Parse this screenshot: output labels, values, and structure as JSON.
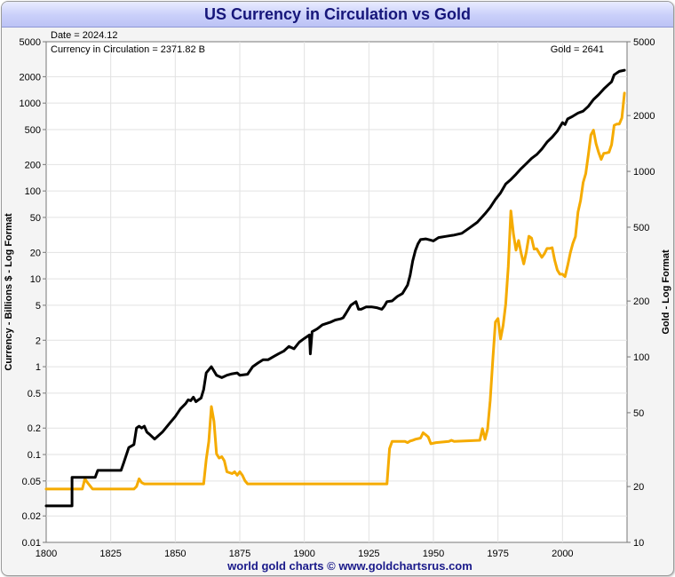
{
  "chart_data": {
    "type": "line",
    "title": "US Currency in Circulation vs Gold",
    "footer": "world gold charts © www.goldchartsrus.com",
    "info": {
      "date": "Date = 2024.12",
      "currency": "Currency in Circulation = 2371.82 B",
      "gold": "Gold = 2641"
    },
    "left_axis": {
      "label": "Currency - Billions $ - Log Format",
      "scale": "log",
      "range": [
        0.01,
        5000
      ],
      "ticks": [
        "0.01",
        "0.02",
        "0.05",
        "0.1",
        "0.2",
        "0.5",
        "1",
        "2",
        "5",
        "10",
        "20",
        "50",
        "100",
        "200",
        "500",
        "1000",
        "2000",
        "5000"
      ]
    },
    "right_axis": {
      "label": "Gold - Log Format",
      "scale": "log",
      "range": [
        10,
        5000
      ],
      "ticks": [
        "10",
        "20",
        "50",
        "100",
        "200",
        "500",
        "1000",
        "2000",
        "5000"
      ]
    },
    "x_axis": {
      "range": [
        1800,
        2025
      ],
      "ticks": [
        "1800",
        "1825",
        "1850",
        "1875",
        "1900",
        "1925",
        "1950",
        "1975",
        "2000"
      ]
    },
    "grid": true,
    "legend": "none",
    "series": [
      {
        "axis": "left",
        "color": "#000000",
        "points": [
          [
            1800,
            0.026
          ],
          [
            1810,
            0.026
          ],
          [
            1810,
            0.055
          ],
          [
            1819,
            0.055
          ],
          [
            1820,
            0.066
          ],
          [
            1829,
            0.066
          ],
          [
            1830,
            0.08
          ],
          [
            1832,
            0.12
          ],
          [
            1834,
            0.13
          ],
          [
            1835,
            0.2
          ],
          [
            1836,
            0.21
          ],
          [
            1837,
            0.2
          ],
          [
            1838,
            0.21
          ],
          [
            1839,
            0.18
          ],
          [
            1840,
            0.17
          ],
          [
            1842,
            0.15
          ],
          [
            1845,
            0.18
          ],
          [
            1848,
            0.23
          ],
          [
            1850,
            0.27
          ],
          [
            1852,
            0.33
          ],
          [
            1854,
            0.38
          ],
          [
            1855,
            0.42
          ],
          [
            1856,
            0.41
          ],
          [
            1857,
            0.45
          ],
          [
            1858,
            0.4
          ],
          [
            1859,
            0.42
          ],
          [
            1860,
            0.44
          ],
          [
            1861,
            0.55
          ],
          [
            1862,
            0.85
          ],
          [
            1864,
            1.0
          ],
          [
            1866,
            0.8
          ],
          [
            1868,
            0.75
          ],
          [
            1870,
            0.8
          ],
          [
            1872,
            0.83
          ],
          [
            1874,
            0.85
          ],
          [
            1875,
            0.8
          ],
          [
            1878,
            0.82
          ],
          [
            1880,
            1.0
          ],
          [
            1882,
            1.1
          ],
          [
            1884,
            1.2
          ],
          [
            1886,
            1.2
          ],
          [
            1888,
            1.3
          ],
          [
            1890,
            1.4
          ],
          [
            1892,
            1.5
          ],
          [
            1894,
            1.7
          ],
          [
            1896,
            1.6
          ],
          [
            1898,
            1.9
          ],
          [
            1900,
            2.1
          ],
          [
            1902,
            2.3
          ],
          [
            1902.3,
            1.4
          ],
          [
            1903,
            2.5
          ],
          [
            1905,
            2.7
          ],
          [
            1907,
            3.0
          ],
          [
            1910,
            3.2
          ],
          [
            1912,
            3.4
          ],
          [
            1914,
            3.5
          ],
          [
            1915,
            3.6
          ],
          [
            1916,
            4.0
          ],
          [
            1918,
            5.0
          ],
          [
            1920,
            5.5
          ],
          [
            1921,
            4.5
          ],
          [
            1922,
            4.5
          ],
          [
            1924,
            4.8
          ],
          [
            1926,
            4.8
          ],
          [
            1928,
            4.7
          ],
          [
            1930,
            4.5
          ],
          [
            1931,
            4.9
          ],
          [
            1932,
            5.5
          ],
          [
            1934,
            5.6
          ],
          [
            1936,
            6.3
          ],
          [
            1938,
            6.8
          ],
          [
            1940,
            8.5
          ],
          [
            1941,
            11
          ],
          [
            1942,
            16
          ],
          [
            1943,
            21
          ],
          [
            1944,
            25
          ],
          [
            1945,
            28
          ],
          [
            1947,
            28.5
          ],
          [
            1949,
            27.5
          ],
          [
            1950,
            27
          ],
          [
            1952,
            29.5
          ],
          [
            1955,
            30.5
          ],
          [
            1958,
            31.5
          ],
          [
            1961,
            33
          ],
          [
            1964,
            38
          ],
          [
            1967,
            44
          ],
          [
            1970,
            55
          ],
          [
            1972,
            65
          ],
          [
            1974,
            80
          ],
          [
            1976,
            95
          ],
          [
            1978,
            120
          ],
          [
            1980,
            135
          ],
          [
            1982,
            155
          ],
          [
            1984,
            180
          ],
          [
            1986,
            205
          ],
          [
            1988,
            235
          ],
          [
            1990,
            260
          ],
          [
            1992,
            300
          ],
          [
            1994,
            360
          ],
          [
            1996,
            410
          ],
          [
            1998,
            480
          ],
          [
            2000,
            600
          ],
          [
            2001,
            570
          ],
          [
            2002,
            660
          ],
          [
            2004,
            710
          ],
          [
            2006,
            770
          ],
          [
            2008,
            810
          ],
          [
            2010,
            920
          ],
          [
            2012,
            1100
          ],
          [
            2014,
            1250
          ],
          [
            2016,
            1450
          ],
          [
            2018,
            1650
          ],
          [
            2019,
            1750
          ],
          [
            2020,
            2100
          ],
          [
            2021,
            2200
          ],
          [
            2022,
            2300
          ],
          [
            2024,
            2371.82
          ]
        ]
      },
      {
        "axis": "right",
        "color": "#f5ab00",
        "points": [
          [
            1800,
            19.39
          ],
          [
            1814,
            19.39
          ],
          [
            1815,
            22
          ],
          [
            1816,
            21
          ],
          [
            1818,
            19.39
          ],
          [
            1834,
            19.39
          ],
          [
            1835,
            20
          ],
          [
            1836,
            22
          ],
          [
            1837,
            21
          ],
          [
            1838,
            20.67
          ],
          [
            1861,
            20.67
          ],
          [
            1862,
            28
          ],
          [
            1863,
            35
          ],
          [
            1864,
            54
          ],
          [
            1865,
            45
          ],
          [
            1866,
            30
          ],
          [
            1867,
            28.5
          ],
          [
            1868,
            29
          ],
          [
            1869,
            27.5
          ],
          [
            1870,
            24
          ],
          [
            1872,
            23.5
          ],
          [
            1873,
            24
          ],
          [
            1874,
            23
          ],
          [
            1875,
            24
          ],
          [
            1876,
            23
          ],
          [
            1877,
            21.5
          ],
          [
            1878,
            20.67
          ],
          [
            1932,
            20.67
          ],
          [
            1933,
            32
          ],
          [
            1934,
            35
          ],
          [
            1939,
            35
          ],
          [
            1940,
            34.5
          ],
          [
            1941,
            35.2
          ],
          [
            1942,
            35.5
          ],
          [
            1943,
            36
          ],
          [
            1945,
            36.5
          ],
          [
            1946,
            39
          ],
          [
            1947,
            38
          ],
          [
            1948,
            37
          ],
          [
            1949,
            34
          ],
          [
            1951,
            34.5
          ],
          [
            1956,
            35
          ],
          [
            1957,
            35.5
          ],
          [
            1958,
            35
          ],
          [
            1968,
            35.5
          ],
          [
            1969,
            41
          ],
          [
            1970,
            36
          ],
          [
            1971,
            40.8
          ],
          [
            1972,
            58
          ],
          [
            1973,
            97
          ],
          [
            1974,
            154
          ],
          [
            1975,
            161
          ],
          [
            1976,
            125
          ],
          [
            1977,
            148
          ],
          [
            1978,
            193
          ],
          [
            1979,
            307
          ],
          [
            1980,
            612
          ],
          [
            1981,
            460
          ],
          [
            1982,
            376
          ],
          [
            1983,
            424
          ],
          [
            1984,
            361
          ],
          [
            1985,
            317
          ],
          [
            1986,
            368
          ],
          [
            1987,
            447
          ],
          [
            1988,
            437
          ],
          [
            1989,
            381
          ],
          [
            1990,
            383
          ],
          [
            1991,
            362
          ],
          [
            1992,
            344
          ],
          [
            1993,
            360
          ],
          [
            1994,
            384
          ],
          [
            1995,
            384
          ],
          [
            1996,
            388
          ],
          [
            1997,
            331
          ],
          [
            1998,
            294
          ],
          [
            1999,
            279
          ],
          [
            2000,
            279
          ],
          [
            2001,
            271
          ],
          [
            2002,
            310
          ],
          [
            2003,
            363
          ],
          [
            2004,
            409
          ],
          [
            2005,
            445
          ],
          [
            2006,
            604
          ],
          [
            2007,
            697
          ],
          [
            2008,
            872
          ],
          [
            2009,
            972
          ],
          [
            2010,
            1225
          ],
          [
            2011,
            1572
          ],
          [
            2012,
            1669
          ],
          [
            2013,
            1411
          ],
          [
            2014,
            1266
          ],
          [
            2015,
            1160
          ],
          [
            2016,
            1251
          ],
          [
            2017,
            1257
          ],
          [
            2018,
            1268
          ],
          [
            2019,
            1393
          ],
          [
            2020,
            1770
          ],
          [
            2021,
            1799
          ],
          [
            2022,
            1800
          ],
          [
            2023,
            1943
          ],
          [
            2024,
            2641
          ]
        ]
      }
    ]
  }
}
